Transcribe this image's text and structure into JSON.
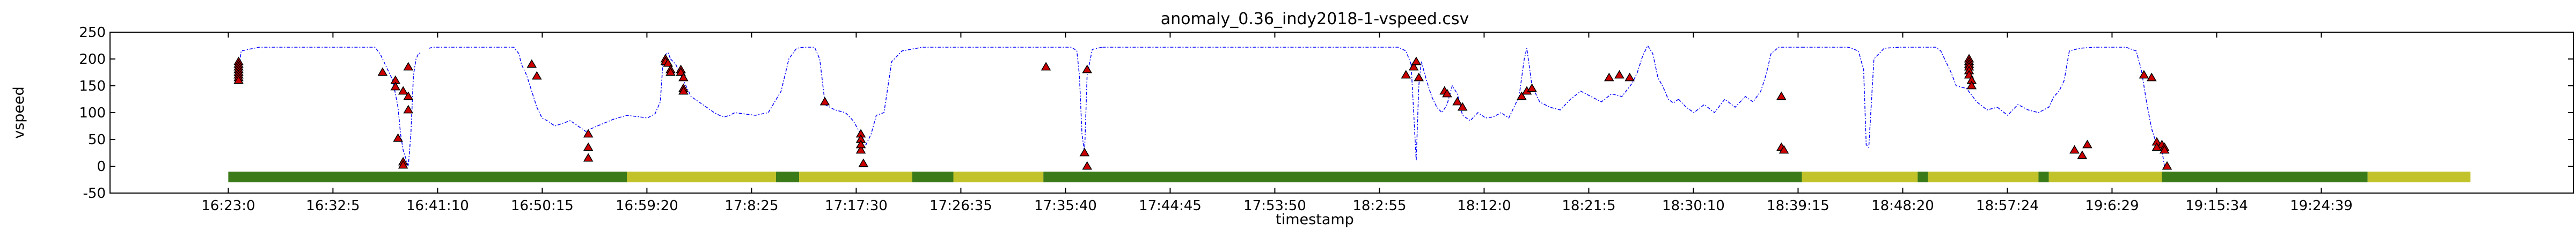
{
  "chart_data": {
    "type": "line",
    "title": "anomaly_0.36_indy2018-1-vspeed.csv",
    "xlabel": "timestamp",
    "ylabel": "vspeed",
    "ylim": [
      -50,
      250
    ],
    "yticks": [
      -50,
      0,
      50,
      100,
      150,
      200,
      250
    ],
    "xlim_minutes": [
      -8,
      392
    ],
    "xticks": [
      {
        "label": "16:23:0",
        "minute": 0
      },
      {
        "label": "16:32:5",
        "minute": 9.08
      },
      {
        "label": "16:41:10",
        "minute": 18.17
      },
      {
        "label": "16:50:15",
        "minute": 27.25
      },
      {
        "label": "16:59:20",
        "minute": 36.33
      },
      {
        "label": "17:8:25",
        "minute": 45.42
      },
      {
        "label": "17:17:30",
        "minute": 54.5
      },
      {
        "label": "17:26:35",
        "minute": 63.58
      },
      {
        "label": "17:35:40",
        "minute": 72.67
      },
      {
        "label": "17:44:45",
        "minute": 81.75
      },
      {
        "label": "17:53:50",
        "minute": 90.83
      },
      {
        "label": "18:2:55",
        "minute": 99.92
      },
      {
        "label": "18:12:0",
        "minute": 109.0
      },
      {
        "label": "18:21:5",
        "minute": 118.08
      },
      {
        "label": "18:30:10",
        "minute": 127.17
      },
      {
        "label": "18:39:15",
        "minute": 136.25
      },
      {
        "label": "18:48:20",
        "minute": 145.33
      },
      {
        "label": "18:57:24",
        "minute": 154.4
      },
      {
        "label": "19:6:29",
        "minute": 163.48
      },
      {
        "label": "19:15:34",
        "minute": 172.57
      },
      {
        "label": "19:24:39",
        "minute": 181.65
      }
    ],
    "grid": false,
    "series_style": {
      "color": "#0000ff",
      "style": "dashed-dotted"
    },
    "line_segments": [
      {
        "x": [
          4,
          5,
          12,
          24,
          37,
          47,
          53,
          57,
          59,
          60,
          61,
          62,
          64,
          66,
          67,
          68,
          70,
          71,
          72,
          73,
          74,
          75
        ],
        "y": [
          175,
          215,
          222,
          222,
          222,
          222,
          222,
          222,
          210,
          200,
          190,
          180,
          160,
          110,
          60,
          30,
          0,
          60,
          170,
          200,
          210,
          212
        ]
      },
      {
        "x": [
          78,
          80,
          95,
          105,
          111,
          113,
          114,
          116,
          118,
          120
        ],
        "y": [
          220,
          222,
          222,
          222,
          222,
          210,
          190,
          170,
          140,
          110
        ]
      },
      {
        "x": [
          120,
          122,
          124,
          127,
          130,
          133,
          136,
          139,
          142,
          145,
          150,
          155,
          160,
          163,
          166,
          168,
          169,
          170,
          171,
          172
        ],
        "y": [
          110,
          90,
          85,
          75,
          80,
          85,
          75,
          65,
          72,
          78,
          88,
          95,
          92,
          90,
          98,
          120,
          190,
          208,
          212,
          200
        ]
      },
      {
        "x": [
          172,
          174,
          176,
          178,
          180,
          183,
          186,
          189,
          191,
          193,
          195,
          197,
          200,
          205,
          210,
          215,
          218,
          221,
          224,
          226,
          228,
          230,
          232
        ],
        "y": [
          200,
          190,
          170,
          150,
          130,
          120,
          110,
          100,
          95,
          92,
          95,
          100,
          98,
          95,
          100,
          140,
          200,
          220,
          222,
          222,
          222,
          200,
          120
        ]
      },
      {
        "x": [
          232,
          236,
          240,
          243,
          246,
          248,
          250,
          252,
          255,
          258,
          262,
          270,
          290,
          310,
          320,
          328,
          330,
          331,
          332,
          333,
          334,
          336,
          340
        ],
        "y": [
          115,
          105,
          100,
          85,
          60,
          40,
          60,
          95,
          100,
          195,
          215,
          222,
          222,
          222,
          222,
          222,
          215,
          170,
          60,
          25,
          170,
          218,
          222
        ]
      },
      {
        "x": [
          340,
          360,
          380,
          400,
          420,
          430,
          440,
          450,
          455,
          458,
          460
        ],
        "y": [
          222,
          222,
          222,
          222,
          222,
          222,
          222,
          222,
          222,
          215,
          190
        ]
      },
      {
        "x": [
          460,
          461,
          462,
          463,
          464,
          466,
          468,
          470,
          472,
          474,
          476,
          478,
          480,
          483,
          486,
          489,
          492,
          495,
          498,
          500,
          502,
          504,
          505,
          507
        ],
        "y": [
          190,
          100,
          10,
          150,
          195,
          160,
          130,
          110,
          100,
          115,
          150,
          135,
          95,
          85,
          100,
          90,
          92,
          100,
          90,
          110,
          130,
          200,
          220,
          150
        ]
      },
      {
        "x": [
          507,
          510,
          514,
          518,
          522,
          526,
          530,
          534,
          538,
          542,
          546,
          548,
          550,
          552,
          554,
          556,
          558,
          560,
          562,
          564
        ],
        "y": [
          150,
          120,
          110,
          105,
          125,
          140,
          130,
          120,
          135,
          130,
          155,
          175,
          205,
          225,
          210,
          165,
          148,
          125,
          118,
          125
        ]
      },
      {
        "x": [
          564,
          567,
          570,
          574,
          578,
          582,
          586,
          590,
          593,
          596,
          598,
          600,
          603,
          606,
          608,
          612
        ],
        "y": [
          125,
          110,
          100,
          115,
          100,
          125,
          110,
          130,
          120,
          140,
          170,
          210,
          222,
          222,
          222,
          222
        ]
      },
      {
        "x": [
          612,
          622,
          630,
          634,
          636,
          637,
          638,
          640,
          644,
          650,
          656,
          660,
          664,
          666,
          668,
          670,
          672,
          676,
          680,
          684,
          688
        ],
        "y": [
          222,
          222,
          222,
          215,
          180,
          40,
          35,
          200,
          220,
          222,
          222,
          222,
          222,
          215,
          195,
          175,
          150,
          145,
          120,
          105,
          110
        ]
      },
      {
        "x": [
          688,
          692,
          696,
          700,
          704,
          708,
          710,
          712,
          714,
          716,
          720,
          726,
          732,
          738,
          742,
          744,
          746,
          748,
          750,
          752,
          753
        ],
        "y": [
          110,
          95,
          115,
          105,
          100,
          110,
          130,
          140,
          160,
          215,
          220,
          222,
          222,
          222,
          215,
          180,
          120,
          70,
          40,
          30,
          0
        ]
      }
    ],
    "x_units_note": "x in points on the x-axis scale where 0 = 16:23:0 and 1 unit = 0.5 minute",
    "anomalies": [
      {
        "x": 4,
        "y": 195
      },
      {
        "x": 4,
        "y": 190
      },
      {
        "x": 4,
        "y": 185
      },
      {
        "x": 4,
        "y": 180
      },
      {
        "x": 4,
        "y": 175
      },
      {
        "x": 4,
        "y": 170
      },
      {
        "x": 4,
        "y": 165
      },
      {
        "x": 4,
        "y": 160
      },
      {
        "x": 60,
        "y": 175
      },
      {
        "x": 65,
        "y": 160
      },
      {
        "x": 65,
        "y": 148
      },
      {
        "x": 68,
        "y": 140
      },
      {
        "x": 66,
        "y": 52
      },
      {
        "x": 68,
        "y": 8
      },
      {
        "x": 68,
        "y": 2
      },
      {
        "x": 70,
        "y": 185
      },
      {
        "x": 70,
        "y": 130
      },
      {
        "x": 70,
        "y": 105
      },
      {
        "x": 118,
        "y": 190
      },
      {
        "x": 120,
        "y": 168
      },
      {
        "x": 140,
        "y": 60
      },
      {
        "x": 140,
        "y": 35
      },
      {
        "x": 140,
        "y": 15
      },
      {
        "x": 170,
        "y": 200
      },
      {
        "x": 170,
        "y": 195
      },
      {
        "x": 171,
        "y": 192
      },
      {
        "x": 172,
        "y": 180
      },
      {
        "x": 172,
        "y": 175
      },
      {
        "x": 176,
        "y": 180
      },
      {
        "x": 176,
        "y": 175
      },
      {
        "x": 177,
        "y": 165
      },
      {
        "x": 177,
        "y": 145
      },
      {
        "x": 177,
        "y": 140
      },
      {
        "x": 232,
        "y": 120
      },
      {
        "x": 246,
        "y": 60
      },
      {
        "x": 246,
        "y": 50
      },
      {
        "x": 246,
        "y": 30
      },
      {
        "x": 247,
        "y": 5
      },
      {
        "x": 246,
        "y": 40
      },
      {
        "x": 318,
        "y": 185
      },
      {
        "x": 333,
        "y": 25
      },
      {
        "x": 334,
        "y": 0
      },
      {
        "x": 334,
        "y": 180
      },
      {
        "x": 458,
        "y": 170
      },
      {
        "x": 461,
        "y": 185
      },
      {
        "x": 462,
        "y": 195
      },
      {
        "x": 463,
        "y": 165
      },
      {
        "x": 473,
        "y": 140
      },
      {
        "x": 474,
        "y": 135
      },
      {
        "x": 478,
        "y": 120
      },
      {
        "x": 480,
        "y": 110
      },
      {
        "x": 503,
        "y": 130
      },
      {
        "x": 505,
        "y": 140
      },
      {
        "x": 507,
        "y": 145
      },
      {
        "x": 537,
        "y": 165
      },
      {
        "x": 541,
        "y": 170
      },
      {
        "x": 545,
        "y": 165
      },
      {
        "x": 604,
        "y": 130
      },
      {
        "x": 604,
        "y": 35
      },
      {
        "x": 605,
        "y": 30
      },
      {
        "x": 677,
        "y": 200
      },
      {
        "x": 677,
        "y": 195
      },
      {
        "x": 677,
        "y": 190
      },
      {
        "x": 677,
        "y": 185
      },
      {
        "x": 677,
        "y": 178
      },
      {
        "x": 677,
        "y": 170
      },
      {
        "x": 678,
        "y": 160
      },
      {
        "x": 678,
        "y": 150
      },
      {
        "x": 718,
        "y": 30
      },
      {
        "x": 721,
        "y": 20
      },
      {
        "x": 723,
        "y": 40
      },
      {
        "x": 745,
        "y": 170
      },
      {
        "x": 748,
        "y": 165
      },
      {
        "x": 750,
        "y": 45
      },
      {
        "x": 752,
        "y": 40
      },
      {
        "x": 753,
        "y": 35
      },
      {
        "x": 753,
        "y": 30
      },
      {
        "x": 754,
        "y": 0
      },
      {
        "x": 750,
        "y": 35
      }
    ],
    "anomaly_style": {
      "marker": "triangle",
      "fill": "#cc0000",
      "edge": "#000000"
    },
    "bands": [
      {
        "from": 0,
        "to": 155,
        "color": "#3a7a19"
      },
      {
        "from": 155,
        "to": 213,
        "color": "#c2c22a"
      },
      {
        "from": 213,
        "to": 222,
        "color": "#3a7a19"
      },
      {
        "from": 222,
        "to": 266,
        "color": "#c2c22a"
      },
      {
        "from": 266,
        "to": 282,
        "color": "#3a7a19"
      },
      {
        "from": 282,
        "to": 317,
        "color": "#c2c22a"
      },
      {
        "from": 317,
        "to": 612,
        "color": "#3a7a19"
      },
      {
        "from": 612,
        "to": 657,
        "color": "#c2c22a"
      },
      {
        "from": 657,
        "to": 661,
        "color": "#3a7a19"
      },
      {
        "from": 661,
        "to": 704,
        "color": "#c2c22a"
      },
      {
        "from": 704,
        "to": 708,
        "color": "#3a7a19"
      },
      {
        "from": 708,
        "to": 752,
        "color": "#c2c22a"
      },
      {
        "from": 752,
        "to": 832,
        "color": "#3a7a19"
      },
      {
        "from": 832,
        "to": 872,
        "color": "#c2c22a"
      }
    ],
    "band_level": -20
  }
}
